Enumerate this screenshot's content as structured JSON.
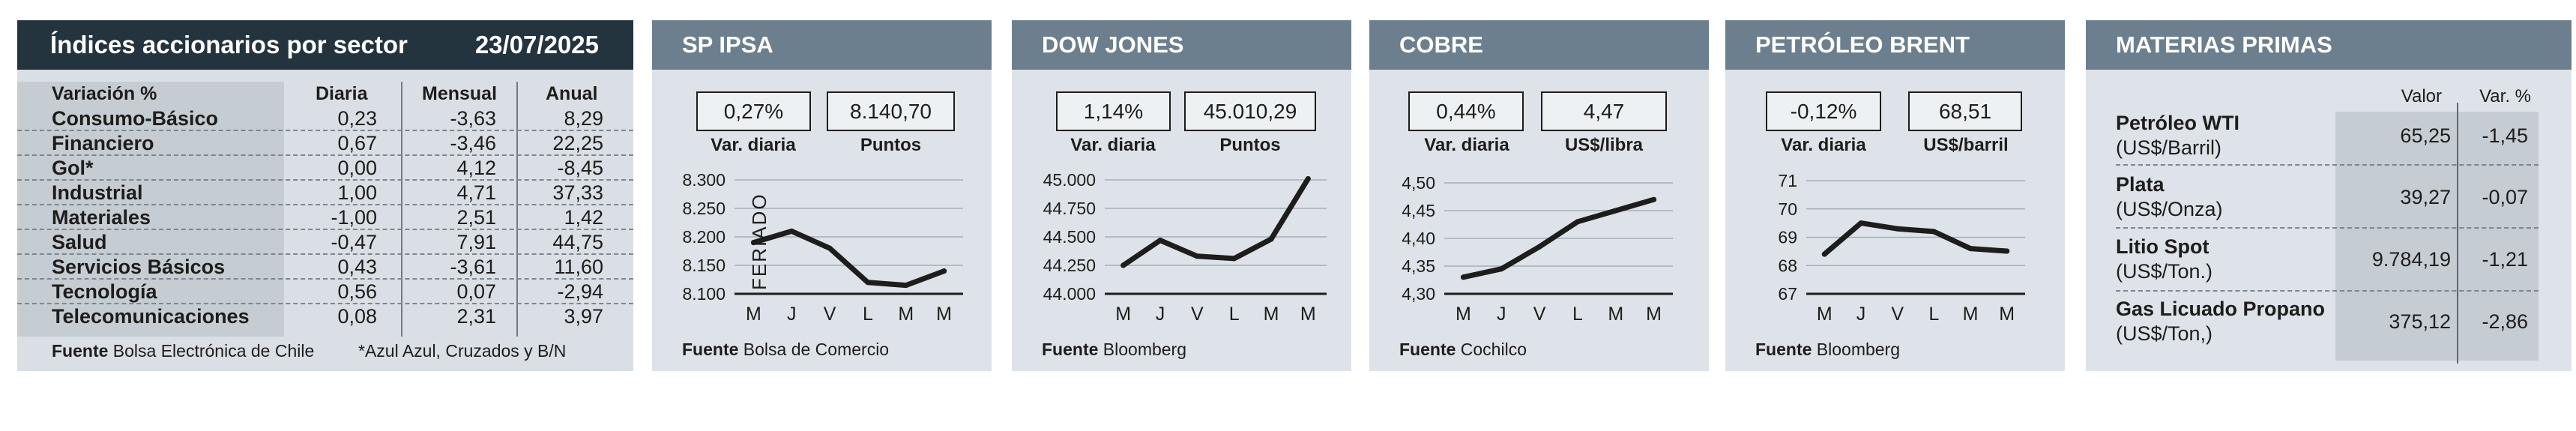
{
  "indices": {
    "title": "Índices accionarios por sector",
    "date": "23/07/2025",
    "columns": [
      "Variación %",
      "Diaria",
      "Mensual",
      "Anual"
    ],
    "rows": [
      {
        "name": "Consumo-Básico",
        "diaria": "0,23",
        "mensual": "-3,63",
        "anual": "8,29"
      },
      {
        "name": "Financiero",
        "diaria": "0,67",
        "mensual": "-3,46",
        "anual": "22,25"
      },
      {
        "name": "Gol*",
        "diaria": "0,00",
        "mensual": "4,12",
        "anual": "-8,45"
      },
      {
        "name": "Industrial",
        "diaria": "1,00",
        "mensual": "4,71",
        "anual": "37,33"
      },
      {
        "name": "Materiales",
        "diaria": "-1,00",
        "mensual": "2,51",
        "anual": "1,42"
      },
      {
        "name": "Salud",
        "diaria": "-0,47",
        "mensual": "7,91",
        "anual": "44,75"
      },
      {
        "name": "Servicios Básicos",
        "diaria": "0,43",
        "mensual": "-3,61",
        "anual": "11,60"
      },
      {
        "name": "Tecnología",
        "diaria": "0,56",
        "mensual": "0,07",
        "anual": "-2,94"
      },
      {
        "name": "Telecomunicaciones",
        "diaria": "0,08",
        "mensual": "2,31",
        "anual": "3,97"
      }
    ],
    "fuente_label": "Fuente",
    "fuente": "Bolsa Electrónica de Chile",
    "note": "*Azul Azul, Cruzados y B/N"
  },
  "ipsa": {
    "title": "SP IPSA",
    "var": "0,27%",
    "value": "8.140,70",
    "var_label": "Var. diaria",
    "value_label": "Puntos",
    "annotation": "FERIADO",
    "fuente_label": "Fuente",
    "fuente": "Bolsa de Comercio"
  },
  "dow": {
    "title": "DOW JONES",
    "var": "1,14%",
    "value": "45.010,29",
    "var_label": "Var. diaria",
    "value_label": "Puntos",
    "fuente_label": "Fuente",
    "fuente": "Bloomberg"
  },
  "cobre": {
    "title": "COBRE",
    "var": "0,44%",
    "value": "4,47",
    "var_label": "Var. diaria",
    "value_label": "US$/libra",
    "fuente_label": "Fuente",
    "fuente": "Cochilco"
  },
  "brent": {
    "title": "PETRÓLEO BRENT",
    "var": "-0,12%",
    "value": "68,51",
    "var_label": "Var. diaria",
    "value_label": "US$/barril",
    "fuente_label": "Fuente",
    "fuente": "Bloomberg"
  },
  "materias": {
    "title": "MATERIAS PRIMAS",
    "col_valor": "Valor",
    "col_var": "Var. %",
    "rows": [
      {
        "name": "Petróleo WTI",
        "unit": "(US$/Barril)",
        "valor": "65,25",
        "var": "-1,45"
      },
      {
        "name": "Plata",
        "unit": "(US$/Onza)",
        "valor": "39,27",
        "var": "-0,07"
      },
      {
        "name": "Litio Spot",
        "unit": "(US$/Ton.)",
        "valor": "9.784,19",
        "var": "-1,21"
      },
      {
        "name": "Gas Licuado Propano",
        "unit": "(US$/Ton,)",
        "valor": "375,12",
        "var": "-2,86"
      }
    ]
  },
  "chart_data": [
    {
      "type": "line",
      "title": "SP IPSA",
      "x": [
        "M",
        "J",
        "V",
        "L",
        "M",
        "M"
      ],
      "series": [
        {
          "values": [
            8190,
            8210,
            8180,
            8120,
            8115,
            8140
          ]
        }
      ],
      "ylim": [
        8100,
        8300
      ],
      "yticks": [
        "8.100",
        "8.150",
        "8.200",
        "8.250",
        "8.300"
      ],
      "line_color": "#1d1d1b"
    },
    {
      "type": "line",
      "title": "DOW JONES",
      "x": [
        "M",
        "J",
        "V",
        "L",
        "M",
        "M"
      ],
      "series": [
        {
          "values": [
            44250,
            44470,
            44330,
            44310,
            44480,
            45010
          ]
        }
      ],
      "ylim": [
        44000,
        45000
      ],
      "yticks": [
        "44.000",
        "44.250",
        "44.500",
        "44.750",
        "45.000"
      ],
      "line_color": "#1d1d1b"
    },
    {
      "type": "line",
      "title": "COBRE",
      "x": [
        "M",
        "J",
        "V",
        "L",
        "M",
        "M"
      ],
      "series": [
        {
          "values": [
            4.33,
            4.345,
            4.385,
            4.43,
            4.45,
            4.47
          ]
        }
      ],
      "ylim": [
        4.3,
        4.5
      ],
      "yticks": [
        "4,30",
        "4,35",
        "4,40",
        "4,45",
        "4,50"
      ],
      "line_color": "#1d1d1b"
    },
    {
      "type": "line",
      "title": "PETRÓLEO BRENT",
      "x": [
        "M",
        "J",
        "V",
        "L",
        "M",
        "M"
      ],
      "series": [
        {
          "values": [
            68.4,
            69.5,
            69.3,
            69.2,
            68.6,
            68.51
          ]
        }
      ],
      "ylim": [
        67,
        71
      ],
      "yticks": [
        "67",
        "68",
        "69",
        "70",
        "71"
      ],
      "line_color": "#1d1d1b"
    }
  ]
}
